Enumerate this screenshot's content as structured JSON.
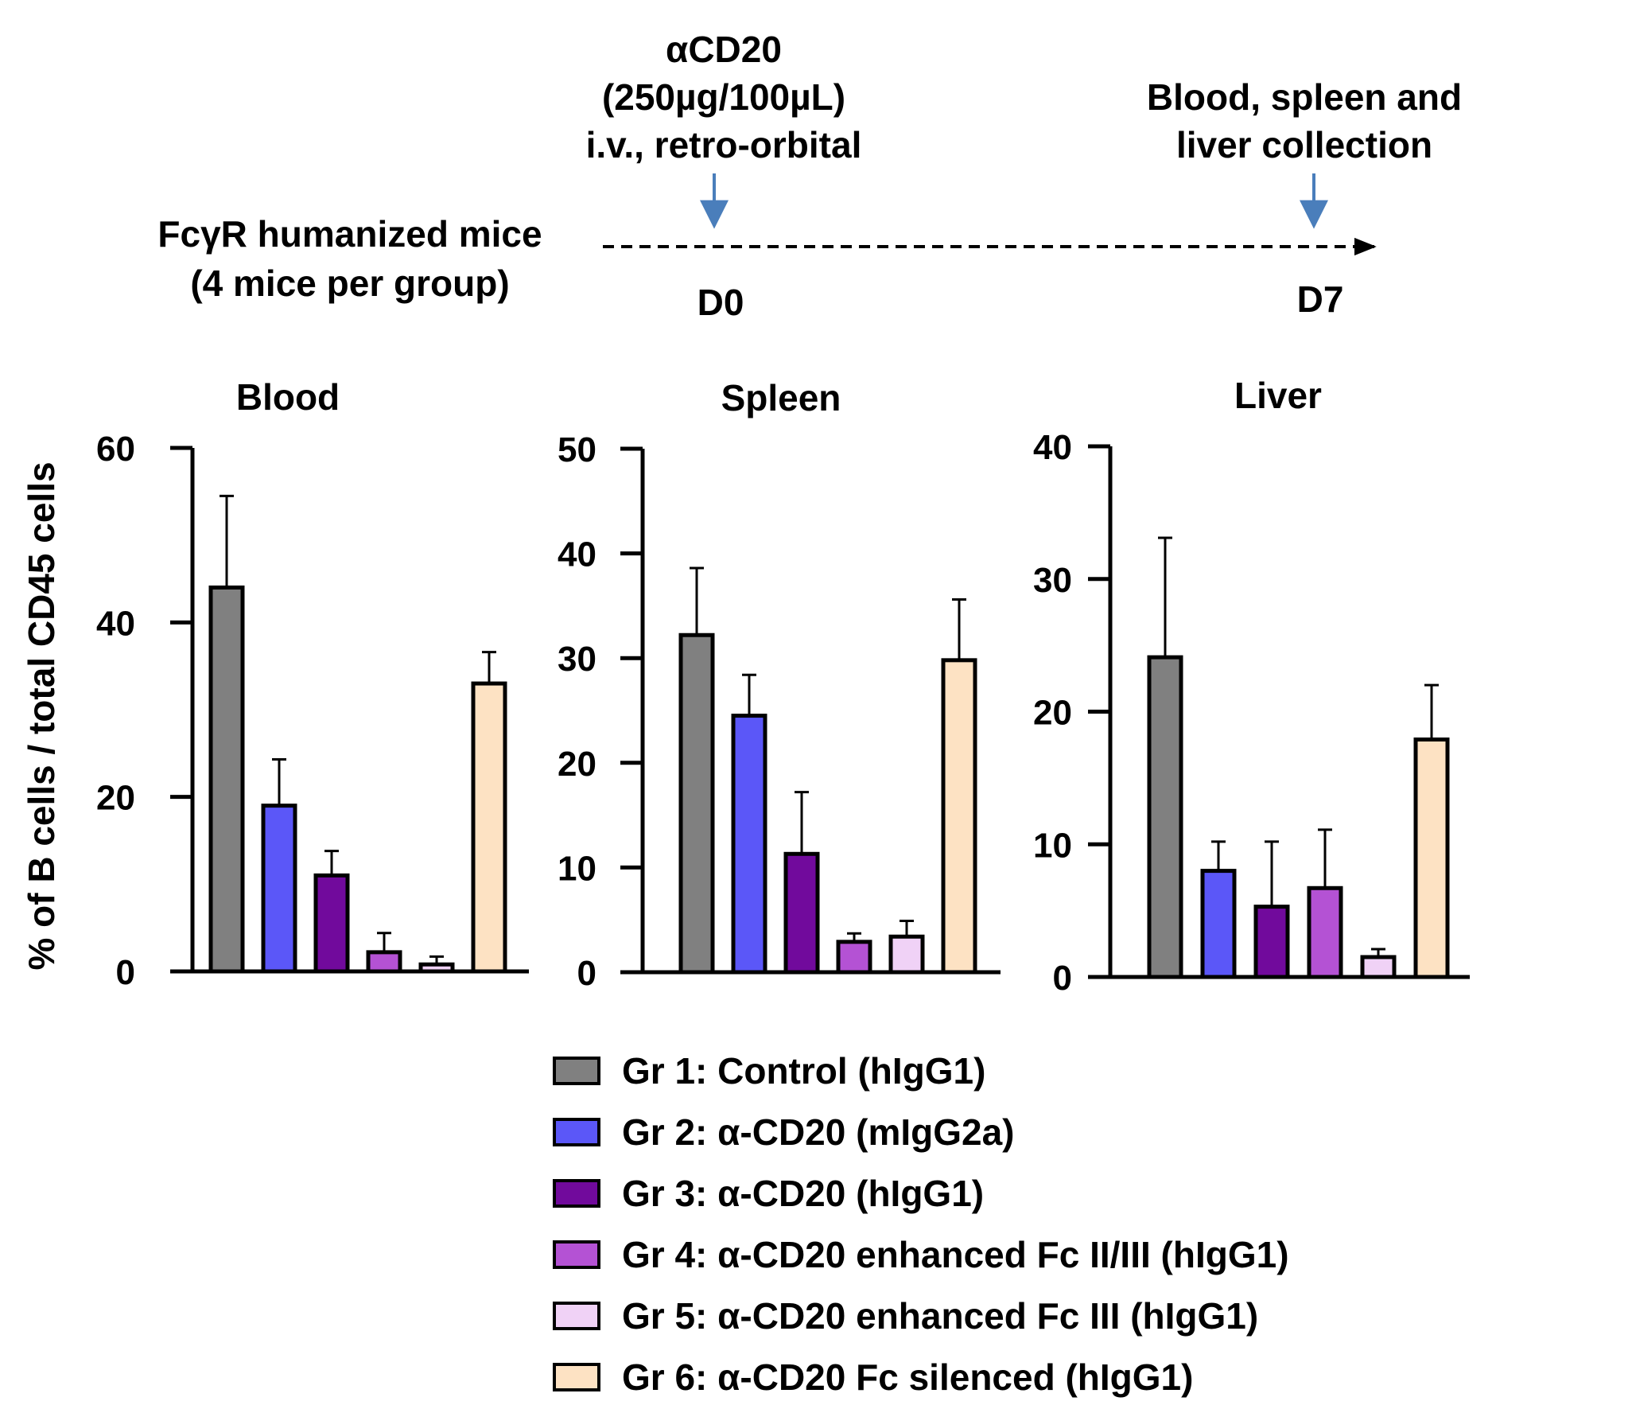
{
  "timeline": {
    "subject_line1": "FcγR humanized mice",
    "subject_line2": "(4 mice per group)",
    "injection_line1": "αCD20",
    "injection_line2": "(250µg/100µL)",
    "injection_line3": "i.v., retro-orbital",
    "collection_line1": "Blood, spleen and",
    "collection_line2": "liver collection",
    "day_start": "D0",
    "day_end": "D7",
    "arrow_color": "#4a7ebb"
  },
  "chart_data": [
    {
      "type": "bar",
      "title": "Blood",
      "ylabel": "% of B cells / total CD45 cells",
      "ylim": [
        0,
        60
      ],
      "yticks": [
        0,
        20,
        40,
        60
      ],
      "categories": [
        "Gr 1",
        "Gr 2",
        "Gr 3",
        "Gr 4",
        "Gr 5",
        "Gr 6"
      ],
      "values": [
        44,
        19,
        11,
        2.2,
        0.8,
        33
      ],
      "errors": [
        10.5,
        5.3,
        2.8,
        2.2,
        0.9,
        3.6
      ]
    },
    {
      "type": "bar",
      "title": "Spleen",
      "ylabel": "",
      "ylim": [
        0,
        50
      ],
      "yticks": [
        0,
        10,
        20,
        30,
        40,
        50
      ],
      "categories": [
        "Gr 1",
        "Gr 2",
        "Gr 3",
        "Gr 4",
        "Gr 5",
        "Gr 6"
      ],
      "values": [
        32.2,
        24.5,
        11.3,
        2.9,
        3.4,
        29.8
      ],
      "errors": [
        6.4,
        3.9,
        5.9,
        0.8,
        1.5,
        5.8
      ]
    },
    {
      "type": "bar",
      "title": "Liver",
      "ylabel": "",
      "ylim": [
        0,
        40
      ],
      "yticks": [
        0,
        10,
        20,
        30,
        40
      ],
      "categories": [
        "Gr 1",
        "Gr 2",
        "Gr 3",
        "Gr 4",
        "Gr 5",
        "Gr 6"
      ],
      "values": [
        24.1,
        8,
        5.3,
        6.7,
        1.5,
        17.9
      ],
      "errors": [
        9,
        2.2,
        4.9,
        4.4,
        0.6,
        4.1
      ]
    }
  ],
  "legend": [
    {
      "label": "Gr 1: Control (hIgG1)",
      "color": "#808080"
    },
    {
      "label": "Gr 2: α-CD20 (mIgG2a)",
      "color": "#5b57f8"
    },
    {
      "label": "Gr 3: α-CD20 (hIgG1)",
      "color": "#710a9c"
    },
    {
      "label": "Gr 4: α-CD20 enhanced Fc II/III (hIgG1)",
      "color": "#b452d4"
    },
    {
      "label": "Gr 5: α-CD20 enhanced Fc III (hIgG1)",
      "color": "#f0d2f6"
    },
    {
      "label": "Gr 6: α-CD20 Fc silenced (hIgG1)",
      "color": "#fde2c3"
    }
  ]
}
